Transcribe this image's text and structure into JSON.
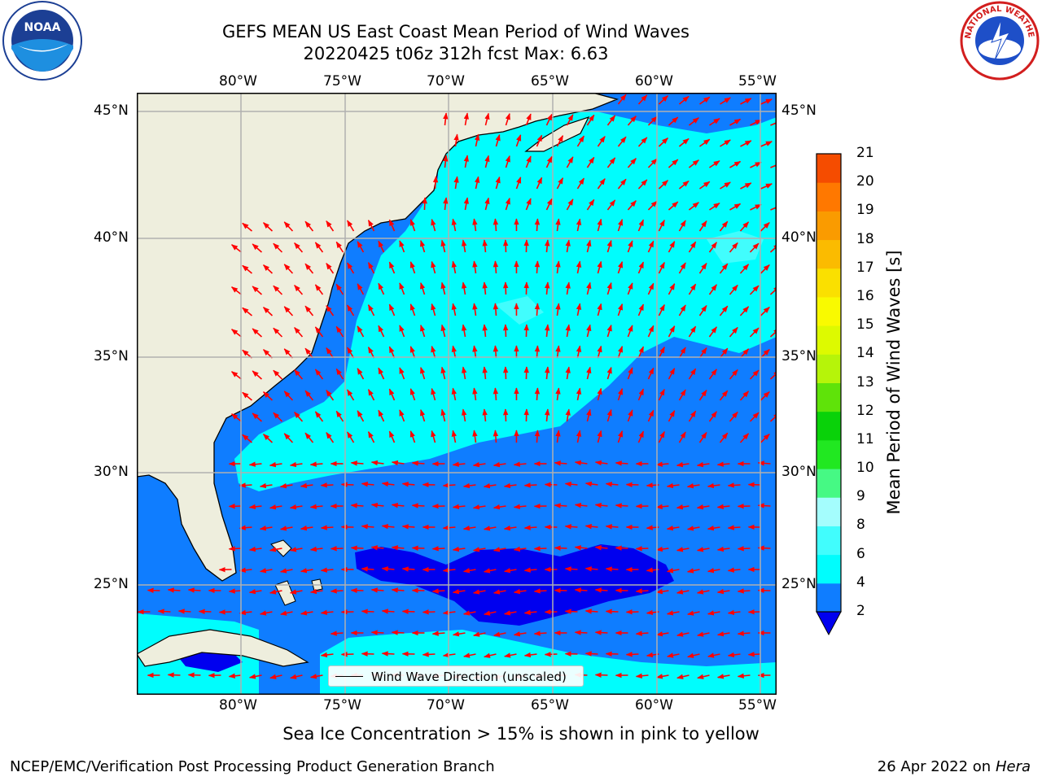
{
  "header": {
    "title_line1": "GEFS MEAN US East Coast Mean Period of Wind Waves",
    "title_line2": "20220425 t06z 312h fcst   Max: 6.63"
  },
  "map": {
    "lon_ticks": [
      "80°W",
      "75°W",
      "70°W",
      "65°W",
      "60°W",
      "55°W"
    ],
    "lat_ticks": [
      "45°N",
      "40°N",
      "35°N",
      "30°N",
      "25°N"
    ],
    "colors": {
      "land": "#eeeedd",
      "band_2_4": "#0f7dff",
      "band_4_6": "#00fdfd",
      "band_6_8": "#41fdfd",
      "below_2": "#0000ef",
      "arrow": "#ff0000",
      "grid": "#b0b0b0"
    }
  },
  "legend": {
    "label": "Wind Wave Direction (unscaled)"
  },
  "colorbar": {
    "label": "Mean Period of Wind Waves [s]",
    "ticks": [
      "2",
      "4",
      "6",
      "8",
      "9",
      "10",
      "11",
      "12",
      "13",
      "14",
      "15",
      "16",
      "17",
      "18",
      "19",
      "20",
      "21"
    ],
    "colors": [
      "#0f7dff",
      "#00fdfd",
      "#41fdfd",
      "#a4fdfd",
      "#46f984",
      "#21e821",
      "#09d209",
      "#5fe309",
      "#b6f409",
      "#ddfa00",
      "#f9fa00",
      "#fae000",
      "#fbbb00",
      "#fa9b00",
      "#ff7800",
      "#f54c00",
      "#ff0000"
    ],
    "underflow_color": "#0000ef"
  },
  "ice_note": "Sea Ice Concentration > 15% is shown in pink to yellow",
  "footer": {
    "left": "NCEP/EMC/Verification Post Processing Product Generation Branch",
    "date": "26 Apr 2022 on ",
    "host": "Hera"
  },
  "logos": {
    "left": "NOAA",
    "right": "NATIONAL WEATHER SERVICE"
  }
}
